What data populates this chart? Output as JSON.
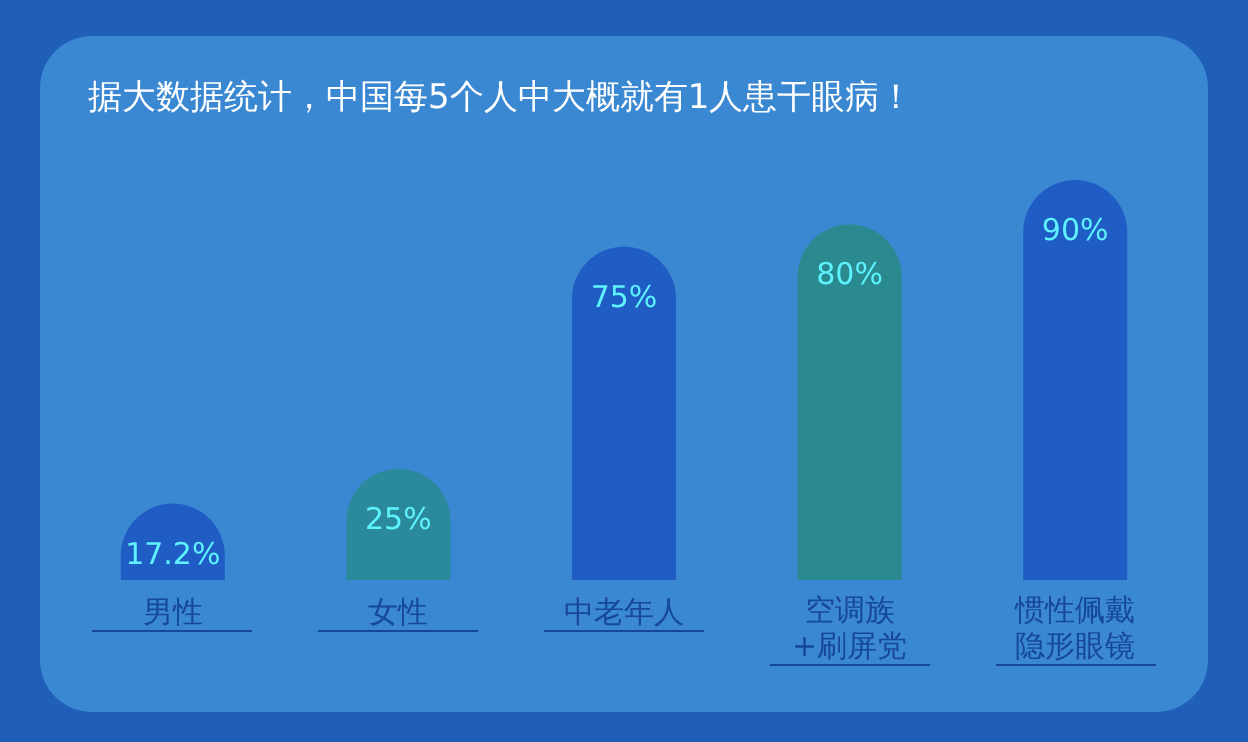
{
  "chart_data": {
    "type": "bar",
    "title": "据大数据统计，中国每5个人中大概就有1人患干眼病！",
    "categories": [
      "男性",
      "女性",
      "中老年人",
      "空调族+刷屏党",
      "惯性佩戴隐形眼镜"
    ],
    "values": [
      17.2,
      25,
      75,
      80,
      90
    ],
    "value_labels": [
      "17.2%",
      "25%",
      "75%",
      "80%",
      "90%"
    ],
    "colors": [
      "#1f5cc4",
      "#2a8a9c",
      "#1f5cc4",
      "#2a8a90",
      "#1f5cc4"
    ]
  }
}
